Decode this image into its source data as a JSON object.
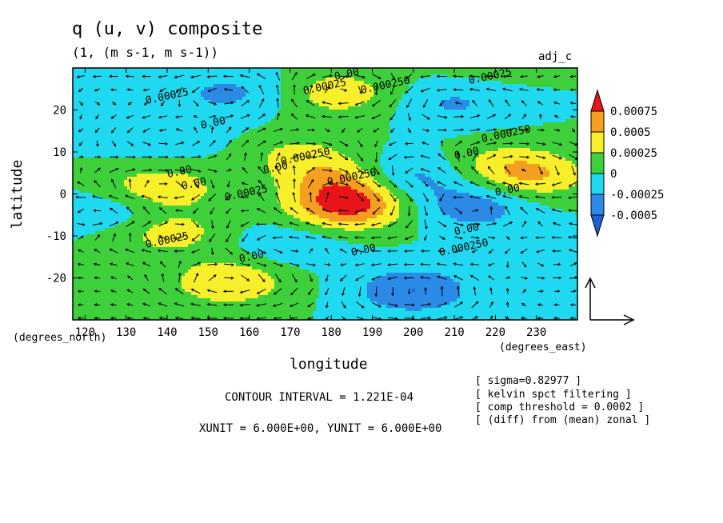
{
  "chart_data": {
    "type": "heatmap",
    "title": "q (u, v) composite",
    "subtitle": "(1, (m s-1, m s-1))",
    "corner_label": "adj_c",
    "xlabel": "longitude",
    "ylabel": "latitude",
    "x_unit": "(degrees_east)",
    "y_unit": "(degrees_north)",
    "xlim": [
      117,
      240
    ],
    "ylim": [
      -30,
      30
    ],
    "x_ticks": [
      120,
      130,
      140,
      150,
      160,
      170,
      180,
      190,
      200,
      210,
      220,
      230
    ],
    "y_ticks": [
      20,
      10,
      0,
      -10,
      -20
    ],
    "colorbar": {
      "labels": [
        "0.00075",
        "0.0005",
        "0.00025",
        "0",
        "-0.00025",
        "-0.0005"
      ],
      "colors": [
        "#e8141a",
        "#f59e20",
        "#f8ef2b",
        "#3ed03a",
        "#1fd9f0",
        "#2a8ae6",
        "#1f5fd4"
      ]
    },
    "contour_labels": [
      "0.00",
      "0.000250",
      "0.00025",
      "0.00025",
      "0.00",
      "0.000250",
      "0.00",
      "0.000250",
      "0.00",
      "0.000250",
      "0.00",
      "0.00025",
      "0.00",
      "0.00025",
      "0.00",
      "0.00",
      "0.000250",
      "0.00",
      "0.00025",
      "0.00"
    ],
    "features": [
      {
        "lon": 184,
        "lat": -3,
        "value": 0.0008
      },
      {
        "lon": 183,
        "lat": 3,
        "value": 0.0005
      },
      {
        "lon": 172,
        "lat": 9,
        "value": 0.0003
      },
      {
        "lon": 138,
        "lat": 1,
        "value": 0.0005
      },
      {
        "lon": 140,
        "lat": -9,
        "value": 0.0004
      },
      {
        "lon": 155,
        "lat": -21,
        "value": 0.0005
      },
      {
        "lon": 182,
        "lat": 24,
        "value": 0.0004
      },
      {
        "lon": 230,
        "lat": 4,
        "value": 0.0004
      },
      {
        "lon": 222,
        "lat": 7,
        "value": 0.0003
      },
      {
        "lon": 215,
        "lat": 28,
        "value": 0.0001
      },
      {
        "lon": 200,
        "lat": -23,
        "value": -0.0005
      },
      {
        "lon": 198,
        "lat": 4,
        "value": -0.0004
      },
      {
        "lon": 215,
        "lat": -3,
        "value": -0.0004
      },
      {
        "lon": 130,
        "lat": -4,
        "value": -0.0003
      },
      {
        "lon": 155,
        "lat": 24,
        "value": -0.0003
      },
      {
        "lon": 210,
        "lat": 22,
        "value": -0.0003
      },
      {
        "lon": 140,
        "lat": 14,
        "value": -0.0002
      },
      {
        "lon": 170,
        "lat": -12,
        "value": -0.0002
      },
      {
        "lon": 235,
        "lat": -15,
        "value": -0.0002
      },
      {
        "lon": 125,
        "lat": 25,
        "value": -0.0001
      }
    ],
    "vector_reference": {
      "xunit": 6.0,
      "yunit": 6.0
    },
    "contour_interval": "1.221E-04"
  },
  "text": {
    "contour_interval": "CONTOUR INTERVAL = 1.221E-04",
    "units": "XUNIT = 6.000E+00, YUNIT = 6.000E+00",
    "notes": [
      "[ sigma=0.82977 ]",
      "[ kelvin spct filtering ]",
      "[ comp threshold = 0.0002 ]",
      "[ (diff) from (mean) zonal ]"
    ]
  }
}
